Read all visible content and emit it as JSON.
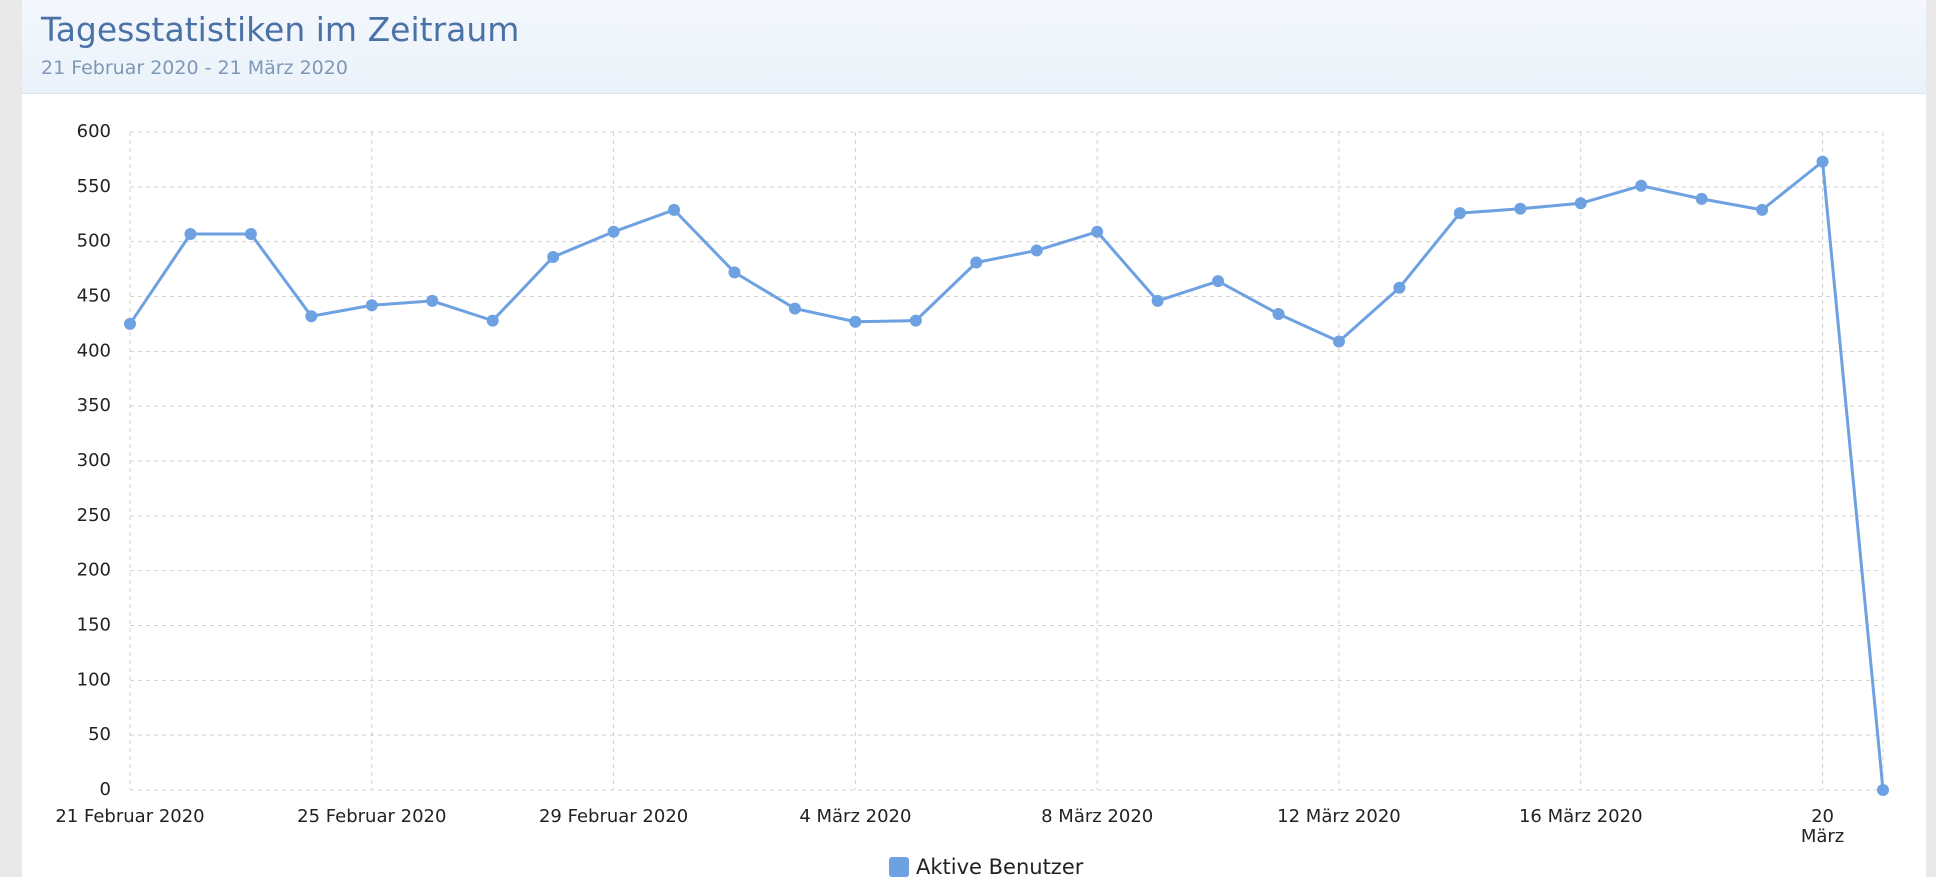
{
  "chart_data": {
    "type": "line",
    "title": "Tagesstatistiken im Zeitraum",
    "subtitle": "21 Februar 2020 - 21 März 2020",
    "categories": [
      "21 Februar 2020",
      null,
      null,
      null,
      "25 Februar 2020",
      null,
      null,
      null,
      "29 Februar 2020",
      null,
      null,
      null,
      "4 März 2020",
      null,
      null,
      null,
      "8 März 2020",
      null,
      null,
      null,
      "12 März 2020",
      null,
      null,
      null,
      "16 März 2020",
      null,
      null,
      null,
      "20 März",
      null
    ],
    "series": [
      {
        "name": "Aktive Benutzer",
        "color": "#6ea1e2",
        "values": [
          425,
          507,
          507,
          432,
          442,
          446,
          428,
          486,
          509,
          529,
          472,
          439,
          427,
          428,
          481,
          492,
          509,
          446,
          464,
          434,
          409,
          458,
          526,
          530,
          535,
          551,
          539,
          529,
          573,
          0
        ]
      }
    ],
    "ylim": [
      0,
      600
    ],
    "yticks": [
      0,
      50,
      100,
      150,
      200,
      250,
      300,
      350,
      400,
      450,
      500,
      550,
      600
    ],
    "grid": true
  }
}
